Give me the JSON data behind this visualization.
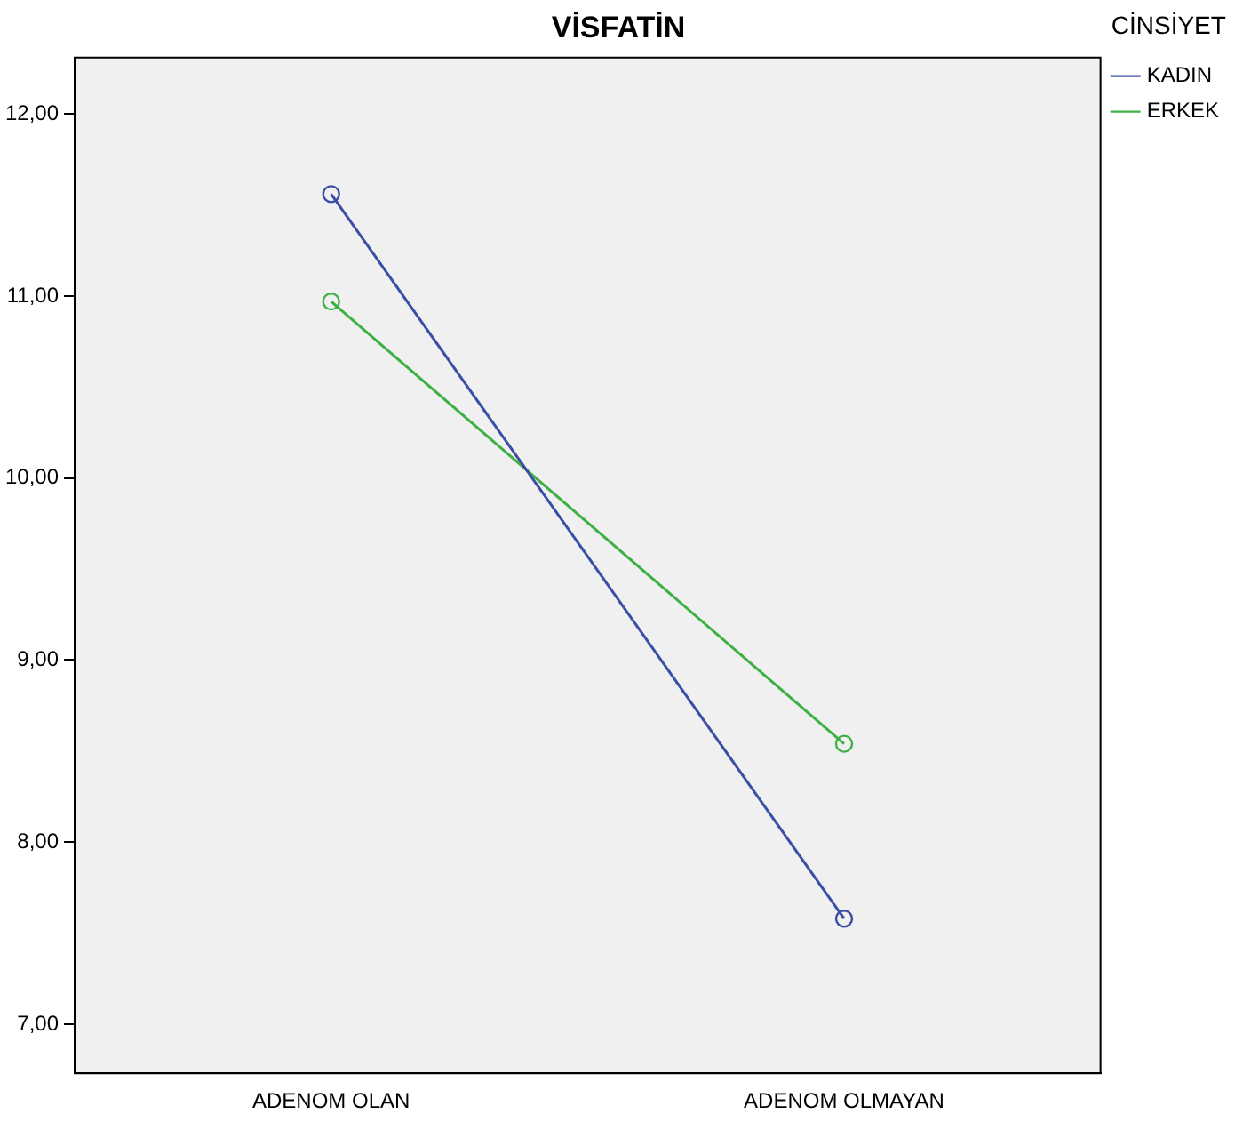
{
  "chart_data": {
    "type": "line",
    "title": "VİSFATİN",
    "legend_title": "CİNSİYET",
    "categories": [
      "ADENOM OLAN",
      "ADENOM OLMAYAN"
    ],
    "series": [
      {
        "name": "KADIN",
        "color": "#3b4ea6",
        "values": [
          11.56,
          7.58
        ]
      },
      {
        "name": "ERKEK",
        "color": "#3cb043",
        "values": [
          10.97,
          8.54
        ]
      }
    ],
    "ylim": [
      6.73,
      12.31
    ],
    "yticks": [
      {
        "value": 7,
        "label": "7,00"
      },
      {
        "value": 8,
        "label": "8,00"
      },
      {
        "value": 9,
        "label": "9,00"
      },
      {
        "value": 10,
        "label": "10,00"
      },
      {
        "value": 11,
        "label": "11,00"
      },
      {
        "value": 12,
        "label": "12,00"
      }
    ],
    "grid": false,
    "legend": "top right",
    "marker": "circle",
    "line_style": "solid"
  }
}
